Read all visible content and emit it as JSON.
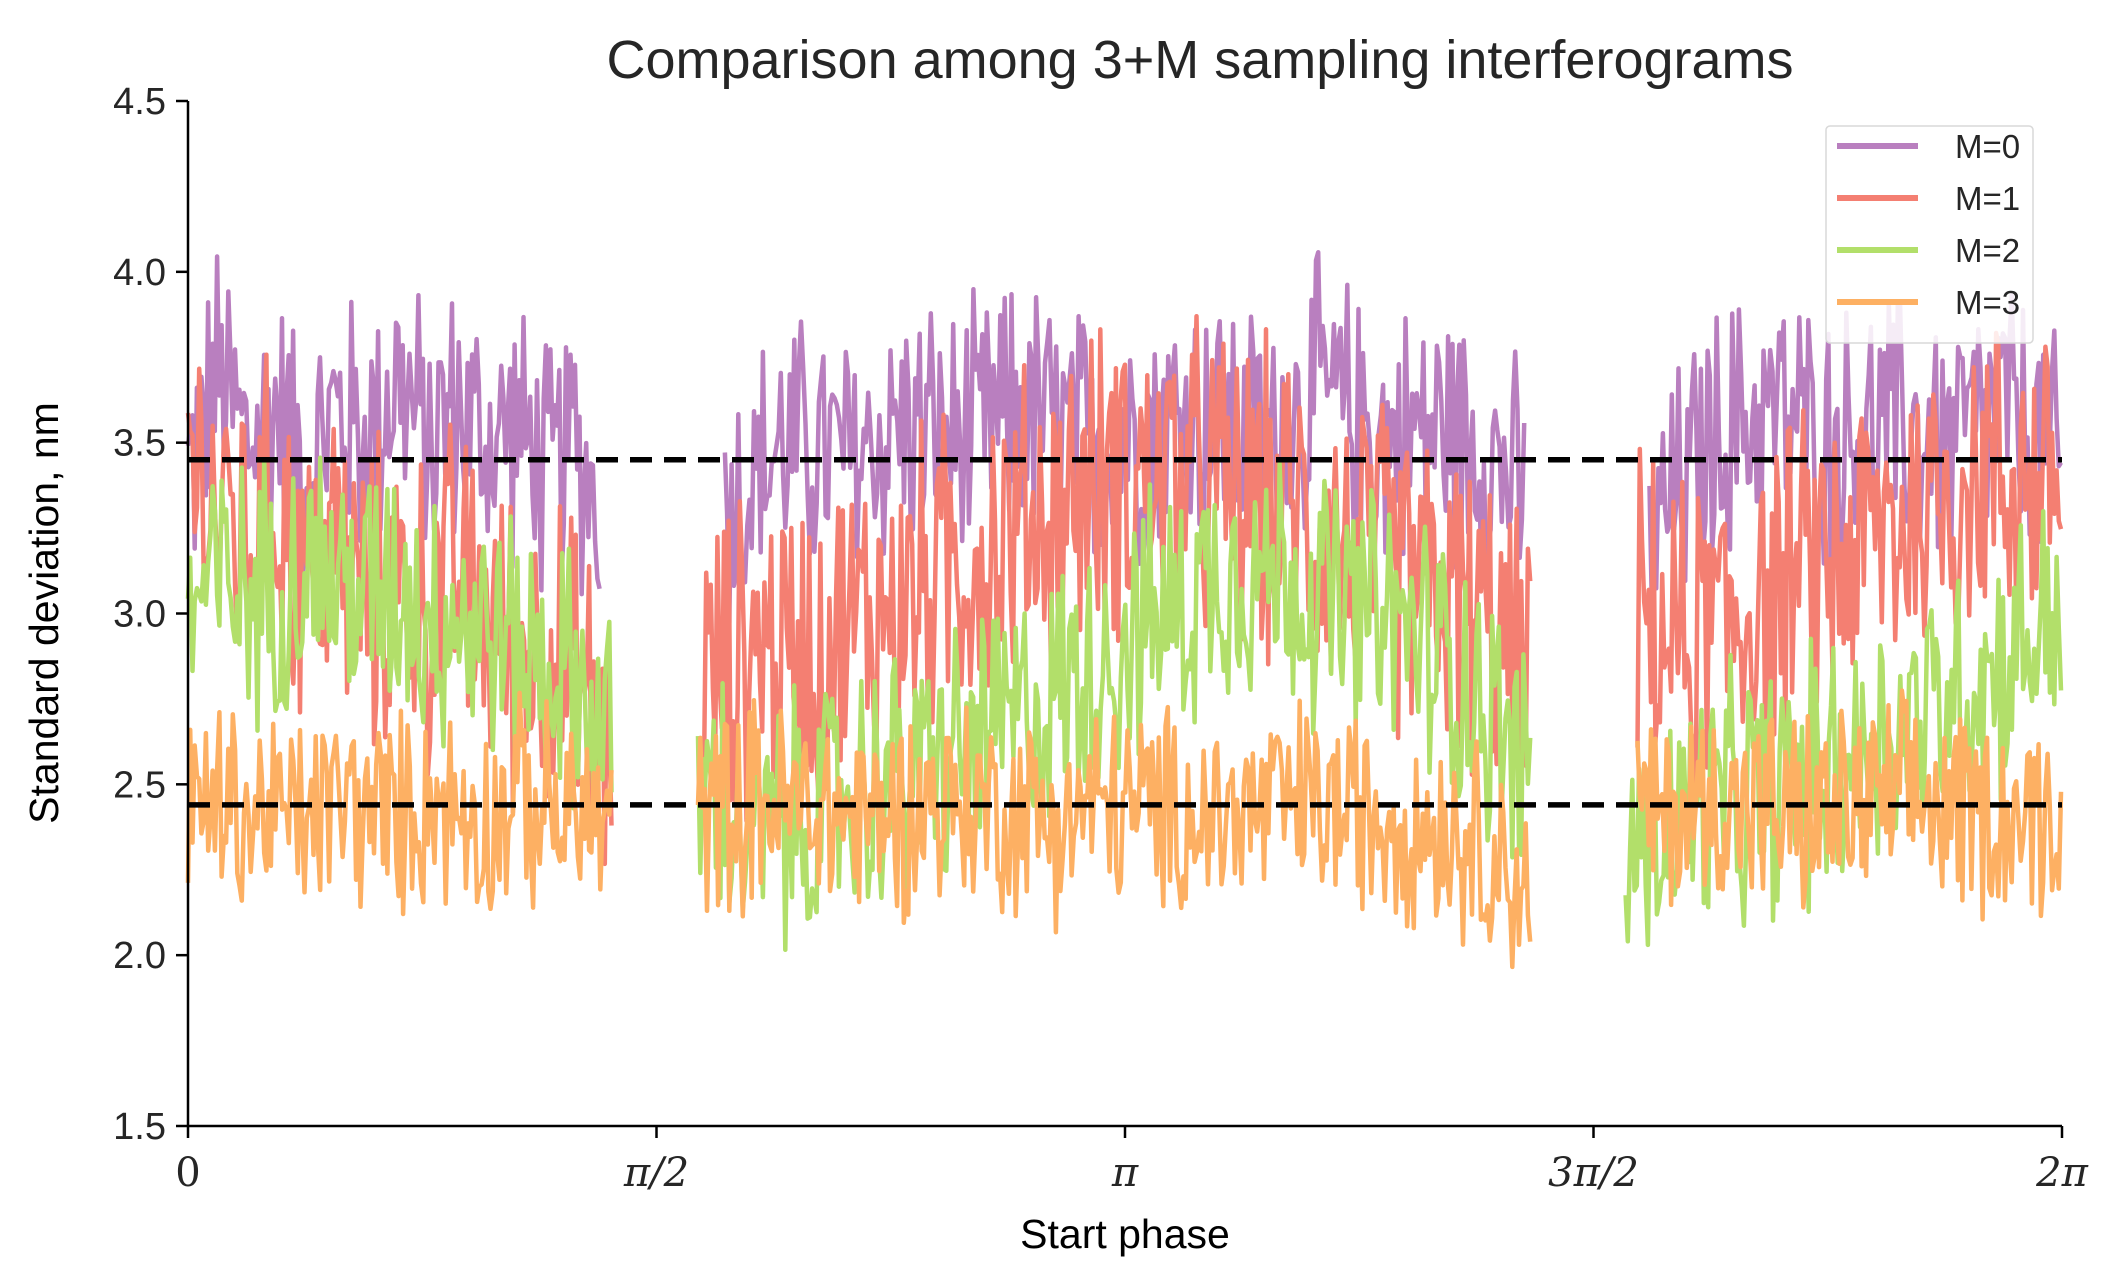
{
  "chart_data": {
    "type": "line",
    "title": "Comparison among 3+M sampling interferograms",
    "xlabel": "Start phase",
    "ylabel": "Standard deviation, nm",
    "xlim": [
      0,
      6.2832
    ],
    "ylim": [
      1.5,
      4.5
    ],
    "yticks": [
      1.5,
      2.0,
      2.5,
      3.0,
      3.5,
      4.0,
      4.5
    ],
    "ytick_labels": [
      "1.5",
      "2.0",
      "2.5",
      "3.0",
      "3.5",
      "4.0",
      "4.5"
    ],
    "xticks": [
      0,
      1.5708,
      3.1416,
      4.7124,
      6.2832
    ],
    "xtick_labels": [
      "0",
      "π/2",
      "π",
      "3π/2",
      "2π"
    ],
    "grid": false,
    "legend_position": "top-right",
    "reference_lines": [
      {
        "y": 3.45,
        "style": "dashed",
        "color": "#000000"
      },
      {
        "y": 2.44,
        "style": "dashed",
        "color": "#000000"
      }
    ],
    "x_segments": [
      [
        0.0,
        1.42
      ],
      [
        1.71,
        4.5
      ],
      [
        4.86,
        6.2832
      ]
    ],
    "series": [
      {
        "name": "M=0",
        "color": "#b97fbf",
        "segments": [
          {
            "x": [
              0.0,
              0.1,
              0.2,
              0.3,
              0.4,
              0.5,
              0.6,
              0.7,
              0.8,
              0.9,
              1.0,
              1.1,
              1.2,
              1.3,
              1.38
            ],
            "y": [
              3.4,
              3.7,
              3.5,
              3.6,
              3.4,
              3.6,
              3.5,
              3.7,
              3.5,
              3.6,
              3.5,
              3.55,
              3.4,
              3.5,
              3.3
            ]
          },
          {
            "x": [
              1.8,
              2.0,
              2.2,
              2.4,
              2.6,
              2.8,
              3.0,
              3.2,
              3.4,
              3.6,
              3.8,
              4.0,
              4.2,
              4.4,
              4.48
            ],
            "y": [
              3.3,
              3.5,
              3.45,
              3.55,
              3.5,
              3.6,
              3.5,
              3.55,
              3.6,
              3.5,
              3.65,
              3.5,
              3.55,
              3.45,
              3.3
            ]
          },
          {
            "x": [
              4.9,
              5.1,
              5.3,
              5.5,
              5.7,
              5.9,
              6.1,
              6.28
            ],
            "y": [
              3.2,
              3.5,
              3.6,
              3.5,
              3.55,
              3.5,
              3.6,
              3.4
            ]
          }
        ]
      },
      {
        "name": "M=1",
        "color": "#f47f72",
        "segments": [
          {
            "x": [
              0.0,
              0.1,
              0.2,
              0.3,
              0.4,
              0.5,
              0.6,
              0.7,
              0.8,
              0.9,
              1.0,
              1.1,
              1.2,
              1.3,
              1.42
            ],
            "y": [
              3.5,
              3.3,
              3.2,
              3.3,
              3.1,
              3.2,
              3.0,
              3.1,
              3.0,
              3.1,
              3.0,
              2.9,
              2.9,
              2.8,
              2.6
            ]
          },
          {
            "x": [
              1.73,
              1.9,
              2.1,
              2.3,
              2.5,
              2.7,
              2.9,
              3.1,
              3.3,
              3.5,
              3.7,
              3.9,
              4.1,
              4.3,
              4.5
            ],
            "y": [
              2.8,
              2.9,
              2.9,
              3.0,
              3.1,
              3.2,
              3.3,
              3.4,
              3.4,
              3.35,
              3.3,
              3.2,
              3.1,
              3.0,
              2.8
            ]
          },
          {
            "x": [
              4.86,
              5.0,
              5.2,
              5.4,
              5.6,
              5.8,
              6.0,
              6.2,
              6.28
            ],
            "y": [
              3.0,
              2.9,
              3.0,
              3.1,
              3.2,
              3.3,
              3.4,
              3.4,
              3.4
            ]
          }
        ]
      },
      {
        "name": "M=2",
        "color": "#b2df6a",
        "segments": [
          {
            "x": [
              0.0,
              0.1,
              0.2,
              0.3,
              0.4,
              0.5,
              0.6,
              0.7,
              0.8,
              0.9,
              1.0,
              1.1,
              1.2,
              1.3,
              1.42
            ],
            "y": [
              3.0,
              3.1,
              3.05,
              3.1,
              3.15,
              3.1,
              3.05,
              3.1,
              3.0,
              3.0,
              2.95,
              2.9,
              2.85,
              2.8,
              2.6
            ]
          },
          {
            "x": [
              1.71,
              1.9,
              2.1,
              2.3,
              2.5,
              2.7,
              2.9,
              3.1,
              3.3,
              3.5,
              3.7,
              3.9,
              4.1,
              4.3,
              4.5
            ],
            "y": [
              2.5,
              2.35,
              2.4,
              2.5,
              2.55,
              2.65,
              2.75,
              2.9,
              3.0,
              3.15,
              3.1,
              3.0,
              2.95,
              2.8,
              2.5
            ]
          },
          {
            "x": [
              4.82,
              5.0,
              5.2,
              5.4,
              5.6,
              5.8,
              6.0,
              6.2,
              6.28
            ],
            "y": [
              2.3,
              2.4,
              2.45,
              2.5,
              2.6,
              2.7,
              2.8,
              2.95,
              3.0
            ]
          }
        ]
      },
      {
        "name": "M=3",
        "color": "#fdb063",
        "segments": [
          {
            "x": [
              0.0,
              0.1,
              0.2,
              0.3,
              0.4,
              0.5,
              0.6,
              0.7,
              0.8,
              0.9,
              1.0,
              1.1,
              1.2,
              1.3,
              1.42
            ],
            "y": [
              2.4,
              2.45,
              2.4,
              2.42,
              2.4,
              2.45,
              2.42,
              2.4,
              2.45,
              2.43,
              2.4,
              2.45,
              2.42,
              2.4,
              2.4
            ]
          },
          {
            "x": [
              1.71,
              1.9,
              2.1,
              2.3,
              2.5,
              2.7,
              2.9,
              3.1,
              3.3,
              3.5,
              3.7,
              3.9,
              4.1,
              4.3,
              4.5
            ],
            "y": [
              2.4,
              2.45,
              2.42,
              2.4,
              2.45,
              2.43,
              2.4,
              2.44,
              2.42,
              2.4,
              2.45,
              2.42,
              2.4,
              2.35,
              2.2
            ]
          },
          {
            "x": [
              4.86,
              5.0,
              5.2,
              5.4,
              5.6,
              5.8,
              6.0,
              6.2,
              6.28
            ],
            "y": [
              2.4,
              2.42,
              2.45,
              2.4,
              2.43,
              2.45,
              2.42,
              2.4,
              2.4
            ]
          }
        ]
      }
    ]
  }
}
